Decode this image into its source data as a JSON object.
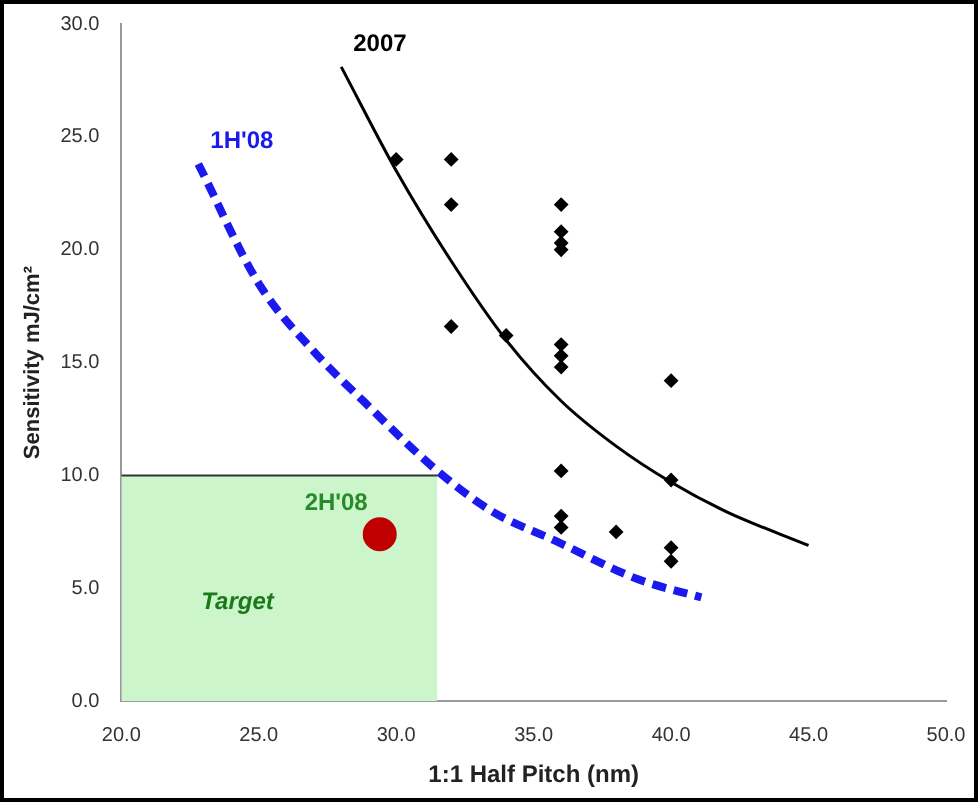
{
  "chart_data": {
    "type": "scatter",
    "xlabel": "1:1 Half Pitch (nm)",
    "ylabel": "Sensitivity mJ/cm²",
    "xlim": [
      20,
      50
    ],
    "xticks": [
      {
        "value": 20,
        "label": "20.0"
      },
      {
        "value": 25,
        "label": "25.0"
      },
      {
        "value": 30,
        "label": "30.0"
      },
      {
        "value": 35,
        "label": "35.0"
      },
      {
        "value": 40,
        "label": "40.0"
      },
      {
        "value": 45,
        "label": "45.0"
      },
      {
        "value": 50,
        "label": "50.0"
      }
    ],
    "ylim": [
      0,
      30
    ],
    "yticks": [
      {
        "value": 0,
        "label": "0.0"
      },
      {
        "value": 5,
        "label": "5.0"
      },
      {
        "value": 10,
        "label": "10.0"
      },
      {
        "value": 15,
        "label": "15.0"
      },
      {
        "value": 20,
        "label": "20.0"
      },
      {
        "value": 25,
        "label": "25.0"
      },
      {
        "value": 30,
        "label": "30.0"
      }
    ],
    "grid": false,
    "legend": false,
    "annotations": [
      "Target"
    ],
    "series": [
      {
        "type": "area",
        "color": "#ccf5cc",
        "x": [
          20,
          31.5
        ],
        "values": [
          10,
          10
        ]
      },
      {
        "type": "scatter",
        "color": "#000000",
        "marker": "diamond",
        "x": [
          30,
          32,
          32,
          32,
          34,
          36,
          36,
          36,
          36,
          36,
          36,
          36,
          36,
          36,
          36,
          38,
          40,
          40,
          40,
          40
        ],
        "values": [
          24,
          24,
          22,
          16.6,
          16.2,
          22,
          20.8,
          20.3,
          20,
          15.8,
          15.3,
          14.8,
          10.2,
          8.2,
          7.7,
          7.5,
          14.2,
          9.8,
          6.8,
          6.2
        ]
      },
      {
        "type": "line",
        "name": "2007",
        "color": "#000000",
        "marker": "none",
        "line_style": "solid",
        "x": [
          28,
          30,
          32,
          34,
          36,
          38,
          40,
          42,
          45
        ],
        "values": [
          28.1,
          23.5,
          19.5,
          16,
          13.3,
          11.3,
          9.7,
          8.4,
          6.9
        ]
      },
      {
        "type": "line",
        "name": "1H'08",
        "color": "#1a1aee",
        "marker": "none",
        "line_style": "dashed",
        "x": [
          22.8,
          25,
          27,
          28.8,
          31.5,
          33.5,
          35.8,
          38.8,
          41.1
        ],
        "values": [
          23.8,
          18.5,
          15.5,
          13.3,
          10.2,
          8.4,
          7.1,
          5.4,
          4.6
        ]
      },
      {
        "type": "scatter",
        "name": "2H'08",
        "color": "#c00000",
        "marker": "circle",
        "x": [
          29.4
        ],
        "values": [
          7.4
        ]
      }
    ]
  }
}
